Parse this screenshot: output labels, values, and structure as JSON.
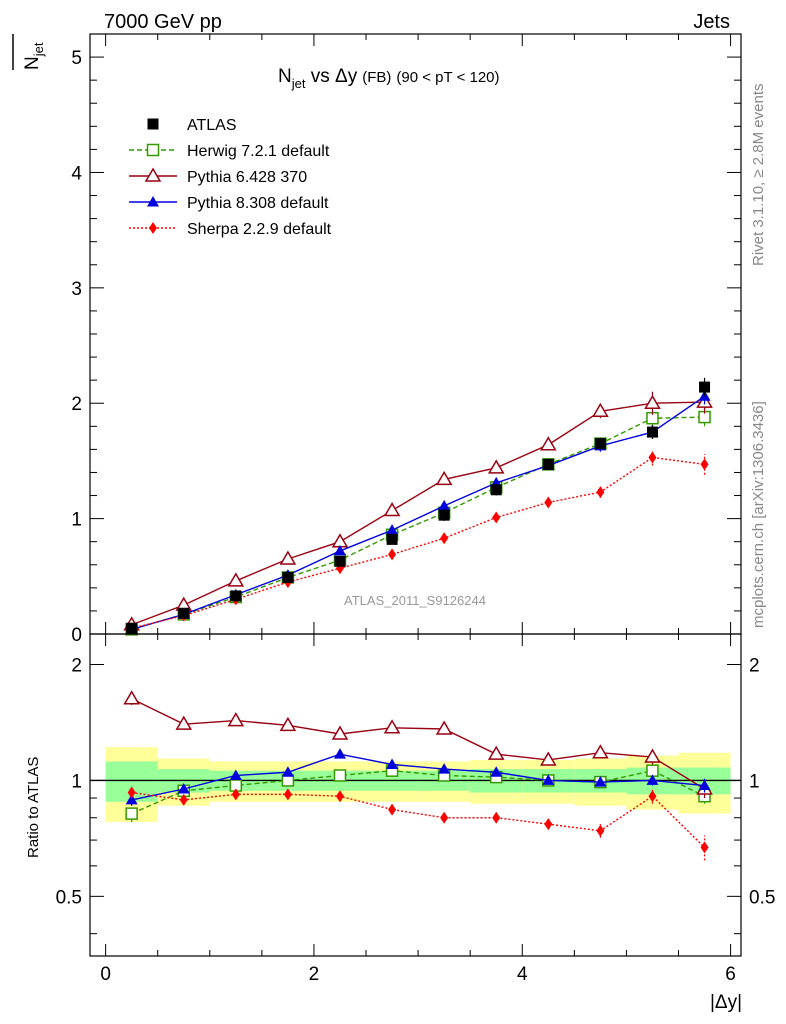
{
  "header": {
    "left": "7000 GeV pp",
    "right": "Jets"
  },
  "title": {
    "main": "N",
    "main_sub": "jet",
    "vs": " vs Δy",
    "tag": "(FB)",
    "range": "(90 < pT < 120)"
  },
  "ylabel_top": {
    "main": "N",
    "sub": "jet"
  },
  "ylabel_bottom": "Ratio to ATLAS",
  "xlabel": "|Δy|",
  "watermark": "ATLAS_2011_S9126244",
  "side_text": {
    "rivet": "Rivet 3.1.10, ≥ 2.8M events",
    "mcplots": "mcplots.cern.ch [arXiv:1306.3436]"
  },
  "chart_data": [
    {
      "type": "scatter",
      "panel": "main",
      "x": [
        0.25,
        0.75,
        1.25,
        1.75,
        2.25,
        2.75,
        3.25,
        3.75,
        4.25,
        4.75,
        5.25,
        5.75
      ],
      "xlim": [
        -0.15,
        6.1
      ],
      "ylim": [
        0,
        5.2
      ],
      "yticks": [
        0,
        1,
        2,
        3,
        4,
        5
      ],
      "xticks": [
        0,
        2,
        4,
        6
      ],
      "legend_position": "top-left",
      "series": [
        {
          "name": "ATLAS",
          "style": "data",
          "color": "#000000",
          "values": [
            0.05,
            0.18,
            0.33,
            0.49,
            0.63,
            0.82,
            1.03,
            1.25,
            1.47,
            1.65,
            1.75,
            2.14
          ],
          "errors": [
            0.01,
            0.01,
            0.02,
            0.02,
            0.03,
            0.04,
            0.05,
            0.05,
            0.05,
            0.05,
            0.06,
            0.08
          ]
        },
        {
          "name": "Herwig 7.2.1 default",
          "style": "herwig",
          "color": "#339900",
          "values": [
            0.04,
            0.17,
            0.32,
            0.49,
            0.64,
            0.86,
            1.05,
            1.27,
            1.47,
            1.65,
            1.87,
            1.88
          ],
          "errors": [
            0.01,
            0.01,
            0.01,
            0.02,
            0.02,
            0.03,
            0.03,
            0.04,
            0.04,
            0.05,
            0.07,
            0.08
          ]
        },
        {
          "name": "Pythia 6.428 370",
          "style": "pythia6",
          "color": "#990011",
          "values": [
            0.08,
            0.25,
            0.46,
            0.65,
            0.8,
            1.07,
            1.34,
            1.44,
            1.64,
            1.93,
            2.0,
            2.01
          ],
          "errors": [
            0.01,
            0.01,
            0.02,
            0.02,
            0.03,
            0.03,
            0.04,
            0.04,
            0.05,
            0.06,
            0.1,
            0.1
          ]
        },
        {
          "name": "Pythia 8.308 default",
          "style": "pythia8",
          "color": "#0000dd",
          "values": [
            0.04,
            0.17,
            0.34,
            0.51,
            0.72,
            0.9,
            1.11,
            1.31,
            1.46,
            1.63,
            1.75,
            2.06
          ],
          "errors": [
            0.01,
            0.01,
            0.01,
            0.02,
            0.02,
            0.03,
            0.03,
            0.04,
            0.04,
            0.05,
            0.06,
            0.07
          ]
        },
        {
          "name": "Sherpa 2.2.9 default",
          "style": "sherpa",
          "color": "#ff0000",
          "values": [
            0.05,
            0.16,
            0.3,
            0.45,
            0.57,
            0.69,
            0.83,
            1.01,
            1.14,
            1.23,
            1.53,
            1.47
          ],
          "errors": [
            0.01,
            0.01,
            0.01,
            0.02,
            0.02,
            0.02,
            0.03,
            0.03,
            0.04,
            0.05,
            0.07,
            0.09
          ]
        }
      ]
    },
    {
      "type": "scatter",
      "panel": "ratio",
      "ylabel": "Ratio to ATLAS",
      "xlabel": "|Δy|",
      "x": [
        0.25,
        0.75,
        1.25,
        1.75,
        2.25,
        2.75,
        3.25,
        3.75,
        4.25,
        4.75,
        5.25,
        5.75
      ],
      "xlim": [
        -0.15,
        6.1
      ],
      "ylim": [
        0.35,
        2.4
      ],
      "yticks": [
        0.5,
        1,
        2
      ],
      "xticks": [
        0,
        2,
        4,
        6
      ],
      "band_inner": [
        0.12,
        0.07,
        0.06,
        0.06,
        0.06,
        0.06,
        0.06,
        0.07,
        0.07,
        0.07,
        0.08,
        0.08
      ],
      "band_outer": [
        0.22,
        0.14,
        0.12,
        0.12,
        0.12,
        0.12,
        0.12,
        0.13,
        0.13,
        0.14,
        0.16,
        0.18
      ],
      "series": [
        {
          "name": "Herwig 7.2.1 default",
          "style": "herwig",
          "color": "#339900",
          "values": [
            0.82,
            0.94,
            0.97,
            1.0,
            1.03,
            1.06,
            1.03,
            1.02,
            1.0,
            0.99,
            1.06,
            0.91
          ],
          "errors": [
            0.04,
            0.02,
            0.02,
            0.02,
            0.02,
            0.02,
            0.02,
            0.02,
            0.02,
            0.02,
            0.03,
            0.04
          ]
        },
        {
          "name": "Pythia 6.428 370",
          "style": "pythia6",
          "color": "#990011",
          "values": [
            1.63,
            1.4,
            1.43,
            1.39,
            1.32,
            1.37,
            1.36,
            1.17,
            1.13,
            1.18,
            1.15,
            0.95
          ],
          "errors": [
            0.06,
            0.03,
            0.03,
            0.03,
            0.03,
            0.03,
            0.03,
            0.03,
            0.03,
            0.03,
            0.05,
            0.05
          ]
        },
        {
          "name": "Pythia 8.308 default",
          "style": "pythia8",
          "color": "#0000dd",
          "values": [
            0.89,
            0.95,
            1.03,
            1.05,
            1.17,
            1.1,
            1.07,
            1.05,
            1.0,
            0.99,
            1.0,
            0.97
          ],
          "errors": [
            0.03,
            0.02,
            0.02,
            0.02,
            0.02,
            0.02,
            0.02,
            0.02,
            0.02,
            0.02,
            0.03,
            0.04
          ]
        },
        {
          "name": "Sherpa 2.2.9 default",
          "style": "sherpa",
          "color": "#ff0000",
          "values": [
            0.93,
            0.89,
            0.92,
            0.92,
            0.91,
            0.84,
            0.8,
            0.8,
            0.77,
            0.74,
            0.91,
            0.67
          ],
          "errors": [
            0.03,
            0.02,
            0.02,
            0.02,
            0.02,
            0.02,
            0.02,
            0.02,
            0.02,
            0.03,
            0.04,
            0.05
          ]
        }
      ]
    }
  ]
}
